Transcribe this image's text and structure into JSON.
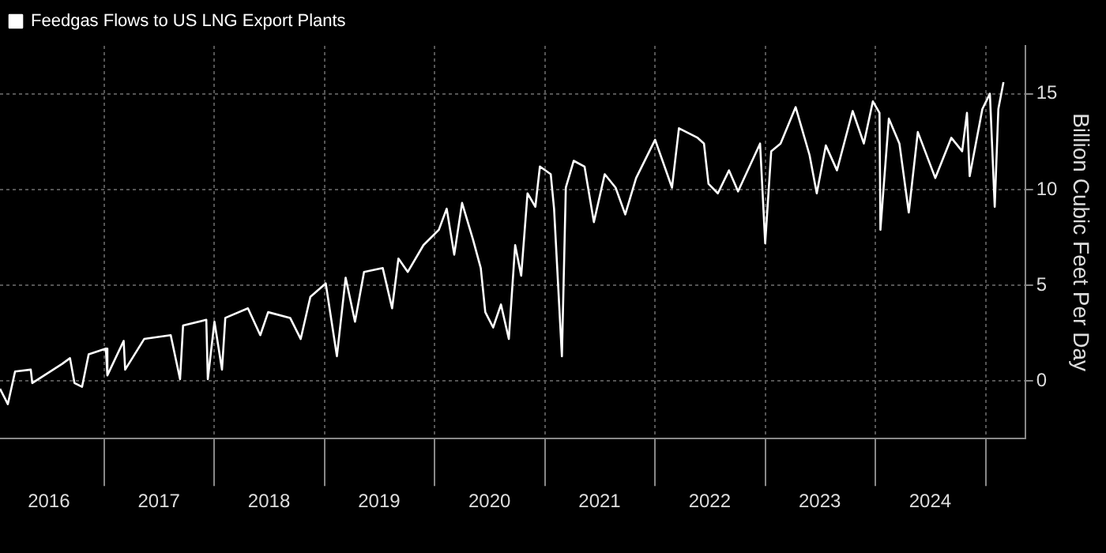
{
  "chart_data": {
    "type": "line",
    "ylabel": "Billion Cubic Feet Per Day",
    "legend": "top left",
    "grid": true,
    "xlim": [
      "2016-01-21",
      "2025-05-12"
    ],
    "ylim": [
      -3,
      17.5
    ],
    "yticks": [
      0,
      5,
      10,
      15
    ],
    "xticks": [
      {
        "value": "2016-07-01",
        "label": "2016"
      },
      {
        "value": "2017-01-01",
        "label": null
      },
      {
        "value": "2017-07-01",
        "label": "2017"
      },
      {
        "value": "2018-01-01",
        "label": null
      },
      {
        "value": "2018-07-01",
        "label": "2018"
      },
      {
        "value": "2019-01-01",
        "label": null
      },
      {
        "value": "2019-07-01",
        "label": "2019"
      },
      {
        "value": "2020-01-01",
        "label": null
      },
      {
        "value": "2020-07-01",
        "label": "2020"
      },
      {
        "value": "2021-01-01",
        "label": null
      },
      {
        "value": "2021-07-01",
        "label": "2021"
      },
      {
        "value": "2022-01-01",
        "label": null
      },
      {
        "value": "2022-07-01",
        "label": "2022"
      },
      {
        "value": "2023-01-01",
        "label": null
      },
      {
        "value": "2023-07-01",
        "label": "2023"
      },
      {
        "value": "2024-01-01",
        "label": null
      },
      {
        "value": "2024-07-01",
        "label": "2024"
      },
      {
        "value": "2025-01-01",
        "label": null
      }
    ],
    "x": [
      "2016-01-21",
      "2016-02-16",
      "2016-03-11",
      "2016-05-02",
      "2016-05-07",
      "2016-08-14",
      "2016-09-09",
      "2016-09-24",
      "2016-10-19",
      "2016-11-10",
      "2017-01-06",
      "2017-01-11",
      "2017-03-06",
      "2017-03-11",
      "2017-05-13",
      "2017-08-09",
      "2017-09-09",
      "2017-09-19",
      "2017-12-05",
      "2017-12-10",
      "2018-01-01",
      "2018-01-26",
      "2018-02-06",
      "2018-04-22",
      "2018-06-02",
      "2018-06-28",
      "2018-09-09",
      "2018-10-14",
      "2018-11-15",
      "2019-01-05",
      "2019-02-11",
      "2019-03-12",
      "2019-04-12",
      "2019-05-12",
      "2019-07-13",
      "2019-08-13",
      "2019-09-03",
      "2019-10-04",
      "2019-11-25",
      "2020-01-15",
      "2020-02-10",
      "2020-03-06",
      "2020-04-01",
      "2020-05-07",
      "2020-06-02",
      "2020-06-17",
      "2020-07-13",
      "2020-08-08",
      "2020-09-03",
      "2020-09-24",
      "2020-10-14",
      "2020-11-04",
      "2020-11-30",
      "2020-12-15",
      "2021-01-20",
      "2021-01-31",
      "2021-02-26",
      "2021-03-11",
      "2021-04-06",
      "2021-05-12",
      "2021-06-12",
      "2021-07-18",
      "2021-08-23",
      "2021-09-24",
      "2021-10-30",
      "2022-01-01",
      "2022-02-26",
      "2022-03-21",
      "2022-05-22",
      "2022-06-12",
      "2022-06-27",
      "2022-07-28",
      "2022-09-03",
      "2022-10-03",
      "2022-12-15",
      "2023-01-01",
      "2023-01-21",
      "2023-02-21",
      "2023-04-12",
      "2023-05-28",
      "2023-06-21",
      "2023-07-21",
      "2023-08-27",
      "2023-10-18",
      "2023-11-24",
      "2023-12-24",
      "2024-01-15",
      "2024-01-18",
      "2024-02-15",
      "2024-03-21",
      "2024-04-21",
      "2024-05-21",
      "2024-07-18",
      "2024-09-09",
      "2024-10-15",
      "2024-10-31",
      "2024-11-09",
      "2024-12-21",
      "2025-01-15",
      "2025-01-31",
      "2025-02-12",
      "2025-03-01"
    ],
    "series": [
      {
        "name": "Feedgas Flows to US LNG Export Plants",
        "color": "#ffffff",
        "values": [
          -0.4,
          -1.2,
          0.5,
          0.6,
          -0.1,
          0.9,
          1.2,
          -0.1,
          -0.3,
          1.4,
          1.7,
          0.3,
          2.1,
          0.6,
          2.2,
          2.4,
          0.1,
          2.9,
          3.2,
          0.1,
          3.1,
          0.6,
          3.3,
          3.8,
          2.4,
          3.6,
          3.3,
          2.2,
          4.4,
          5.1,
          1.3,
          5.4,
          3.1,
          5.7,
          5.9,
          3.8,
          6.4,
          5.7,
          7.1,
          7.9,
          9.0,
          6.6,
          9.3,
          7.4,
          5.9,
          3.6,
          2.8,
          4.0,
          2.2,
          7.1,
          5.5,
          9.8,
          9.1,
          11.2,
          10.8,
          9.0,
          1.3,
          10.1,
          11.5,
          11.2,
          8.3,
          10.8,
          10.1,
          8.7,
          10.6,
          12.6,
          10.1,
          13.2,
          12.7,
          12.4,
          10.3,
          9.8,
          11.0,
          9.9,
          12.4,
          7.2,
          12.0,
          12.4,
          14.3,
          11.8,
          9.8,
          12.3,
          11.0,
          14.1,
          12.4,
          14.6,
          14.0,
          7.9,
          13.7,
          12.4,
          8.8,
          13.0,
          10.6,
          12.7,
          12.0,
          14.0,
          10.7,
          14.2,
          15.0,
          9.1,
          14.2,
          15.6
        ]
      }
    ]
  }
}
